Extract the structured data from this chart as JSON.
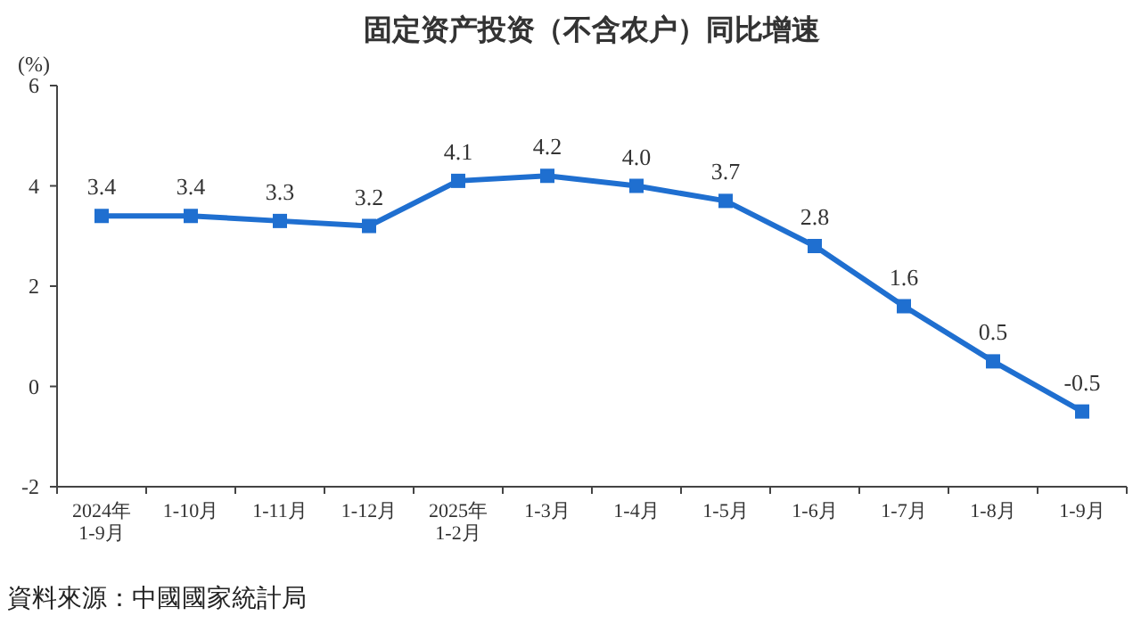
{
  "chart_data": {
    "type": "line",
    "title": "固定资产投资（不含农户）同比增速",
    "ylabel": "(%)",
    "categories": [
      "2024年\n1-9月",
      "1-10月",
      "1-11月",
      "1-12月",
      "2025年\n1-2月",
      "1-3月",
      "1-4月",
      "1-5月",
      "1-6月",
      "1-7月",
      "1-8月",
      "1-9月"
    ],
    "series": [
      {
        "color": "#1f6fd0",
        "values": [
          3.4,
          3.4,
          3.3,
          3.2,
          4.1,
          4.2,
          4.0,
          3.7,
          2.8,
          1.6,
          0.5,
          -0.5
        ],
        "value_labels": [
          "3.4",
          "3.4",
          "3.3",
          "3.2",
          "4.1",
          "4.2",
          "4.0",
          "3.7",
          "2.8",
          "1.6",
          "0.5",
          "-0.5"
        ]
      }
    ],
    "ylim": [
      -2,
      6
    ],
    "yticks": [
      -2,
      0,
      2,
      4,
      6
    ],
    "marker": "square",
    "grid": false,
    "annotations": [
      "資料來源：中國國家統計局"
    ]
  }
}
